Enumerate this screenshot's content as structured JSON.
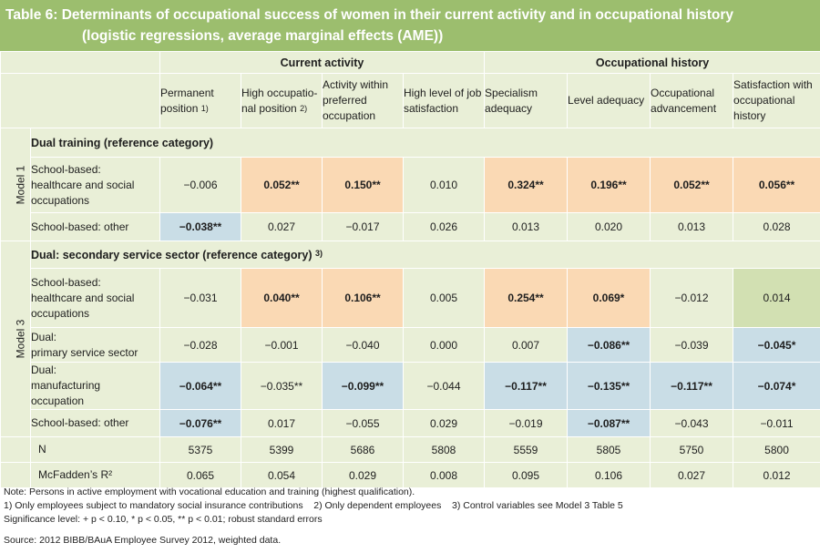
{
  "title": {
    "line1": "Table 6: Determinants of occupational success of women in their current activity and in occupational history",
    "line2": "(logistic regressions, average marginal effects (AME))"
  },
  "groups": [
    "Current activity",
    "Occupational history"
  ],
  "columns": [
    {
      "lines": [
        "Permanent",
        "position"
      ],
      "sup": "1)"
    },
    {
      "lines": [
        "High occupatio-",
        "nal position"
      ],
      "sup": "2)"
    },
    {
      "lines": [
        "Activity within",
        "preferred",
        "occupation"
      ]
    },
    {
      "lines": [
        "High level of job",
        "satisfaction"
      ]
    },
    {
      "lines": [
        "Specialism",
        "adequacy"
      ]
    },
    {
      "lines": [
        "Level adequacy"
      ]
    },
    {
      "lines": [
        "Occupational",
        "advancement"
      ]
    },
    {
      "lines": [
        "Satisfaction with",
        "occupational",
        "history"
      ]
    }
  ],
  "models": [
    {
      "label": "Model 1",
      "reference": "Dual training (reference category)",
      "rows": [
        {
          "lines": [
            "School-based:",
            "healthcare and social",
            "occupations"
          ],
          "cells": [
            {
              "v": "−0.006"
            },
            {
              "v": "0.052**",
              "bold": true,
              "bg": "or"
            },
            {
              "v": "0.150**",
              "bold": true,
              "bg": "or"
            },
            {
              "v": "0.010"
            },
            {
              "v": "0.324**",
              "bold": true,
              "bg": "or"
            },
            {
              "v": "0.196**",
              "bold": true,
              "bg": "or"
            },
            {
              "v": "0.052**",
              "bold": true,
              "bg": "or"
            },
            {
              "v": "0.056**",
              "bold": true,
              "bg": "or"
            }
          ]
        },
        {
          "lines": [
            "School-based: other"
          ],
          "cells": [
            {
              "v": "−0.038**",
              "bold": true,
              "bg": "bl"
            },
            {
              "v": "0.027"
            },
            {
              "v": "−0.017"
            },
            {
              "v": "0.026"
            },
            {
              "v": "0.013"
            },
            {
              "v": "0.020"
            },
            {
              "v": "0.013"
            },
            {
              "v": "0.028"
            }
          ]
        }
      ]
    },
    {
      "label": "Model 3",
      "reference": "Dual: secondary service sector (reference category)",
      "reference_sup": "3)",
      "rows": [
        {
          "lines": [
            "School-based:",
            "healthcare and social",
            "occupations"
          ],
          "cells": [
            {
              "v": "−0.031"
            },
            {
              "v": "0.040**",
              "bold": true,
              "bg": "or"
            },
            {
              "v": "0.106**",
              "bold": true,
              "bg": "or"
            },
            {
              "v": "0.005"
            },
            {
              "v": "0.254**",
              "bold": true,
              "bg": "or"
            },
            {
              "v": "0.069*",
              "bold": true,
              "bg": "or"
            },
            {
              "v": "−0.012"
            },
            {
              "v": "0.014",
              "bg": "gr"
            }
          ]
        },
        {
          "lines": [
            "Dual:",
            "primary service sector"
          ],
          "cells": [
            {
              "v": "−0.028"
            },
            {
              "v": "−0.001"
            },
            {
              "v": "−0.040"
            },
            {
              "v": "0.000"
            },
            {
              "v": "0.007"
            },
            {
              "v": "−0.086**",
              "bold": true,
              "bg": "bl"
            },
            {
              "v": "−0.039"
            },
            {
              "v": "−0.045*",
              "bold": true,
              "bg": "bl"
            }
          ]
        },
        {
          "lines": [
            "Dual:",
            "manufacturing",
            "occupation"
          ],
          "cells": [
            {
              "v": "−0.064**",
              "bold": true,
              "bg": "bl"
            },
            {
              "v": "−0.035**"
            },
            {
              "v": "−0.099**",
              "bold": true,
              "bg": "bl"
            },
            {
              "v": "−0.044"
            },
            {
              "v": "−0.117**",
              "bold": true,
              "bg": "bl"
            },
            {
              "v": "−0.135**",
              "bold": true,
              "bg": "bl"
            },
            {
              "v": "−0.117**",
              "bold": true,
              "bg": "bl"
            },
            {
              "v": "−0.074*",
              "bold": true,
              "bg": "bl"
            }
          ]
        },
        {
          "lines": [
            "School-based: other"
          ],
          "cells": [
            {
              "v": "−0.076**",
              "bold": true,
              "bg": "bl"
            },
            {
              "v": "0.017"
            },
            {
              "v": "−0.055"
            },
            {
              "v": "0.029"
            },
            {
              "v": "−0.019"
            },
            {
              "v": "−0.087**",
              "bold": true,
              "bg": "bl"
            },
            {
              "v": "−0.043"
            },
            {
              "v": "−0.011"
            }
          ]
        }
      ]
    }
  ],
  "summary": [
    {
      "label": "N",
      "values": [
        "5375",
        "5399",
        "5686",
        "5808",
        "5559",
        "5805",
        "5750",
        "5800"
      ]
    },
    {
      "label": "McFadden’s R²",
      "values": [
        "0.065",
        "0.054",
        "0.029",
        "0.008",
        "0.095",
        "0.106",
        "0.027",
        "0.012"
      ]
    }
  ],
  "notes": {
    "note": "Note: Persons in active employment with vocational education and training (highest qualification).",
    "footnotes": "1) Only employees subject to mandatory social insurance contributions    2) Only dependent employees    3) Control variables see Model 3 Table 5",
    "significance": "Significance level: + p < 0.10, * p < 0.05, ** p < 0.01; robust standard errors",
    "source": "Source: 2012 BIBB/BAuA Employee Survey 2012, weighted data."
  }
}
